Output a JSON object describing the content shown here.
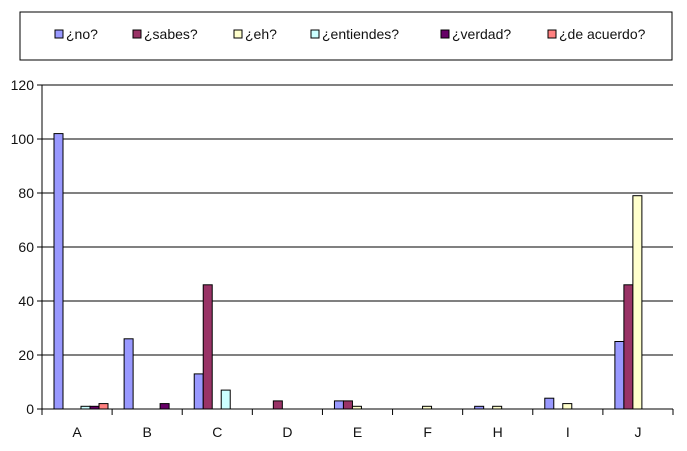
{
  "chart_data": {
    "type": "bar",
    "title": "",
    "xlabel": "",
    "ylabel": "",
    "ylim": [
      0,
      120
    ],
    "yticks": [
      0,
      20,
      40,
      60,
      80,
      100,
      120
    ],
    "grid": true,
    "legend_position": "top",
    "categories": [
      "A",
      "B",
      "C",
      "D",
      "E",
      "F",
      "H",
      "I",
      "J"
    ],
    "series": [
      {
        "name": "¿no?",
        "color": "#9999ff",
        "values": [
          102,
          26,
          13,
          0,
          3,
          0,
          1,
          4,
          25
        ]
      },
      {
        "name": "¿sabes?",
        "color": "#993366",
        "values": [
          0,
          0,
          46,
          3,
          3,
          0,
          0,
          0,
          46
        ]
      },
      {
        "name": "¿eh?",
        "color": "#ffffcc",
        "values": [
          0,
          0,
          0,
          0,
          1,
          1,
          1,
          2,
          79
        ]
      },
      {
        "name": "¿entiendes?",
        "color": "#ccffff",
        "values": [
          1,
          0,
          7,
          0,
          0,
          0,
          0,
          0,
          0
        ]
      },
      {
        "name": "¿verdad?",
        "color": "#660066",
        "values": [
          1,
          2,
          0,
          0,
          0,
          0,
          0,
          0,
          0
        ]
      },
      {
        "name": "¿de acuerdo?",
        "color": "#ff8080",
        "values": [
          2,
          0,
          0,
          0,
          0,
          0,
          0,
          0,
          0
        ]
      }
    ]
  }
}
